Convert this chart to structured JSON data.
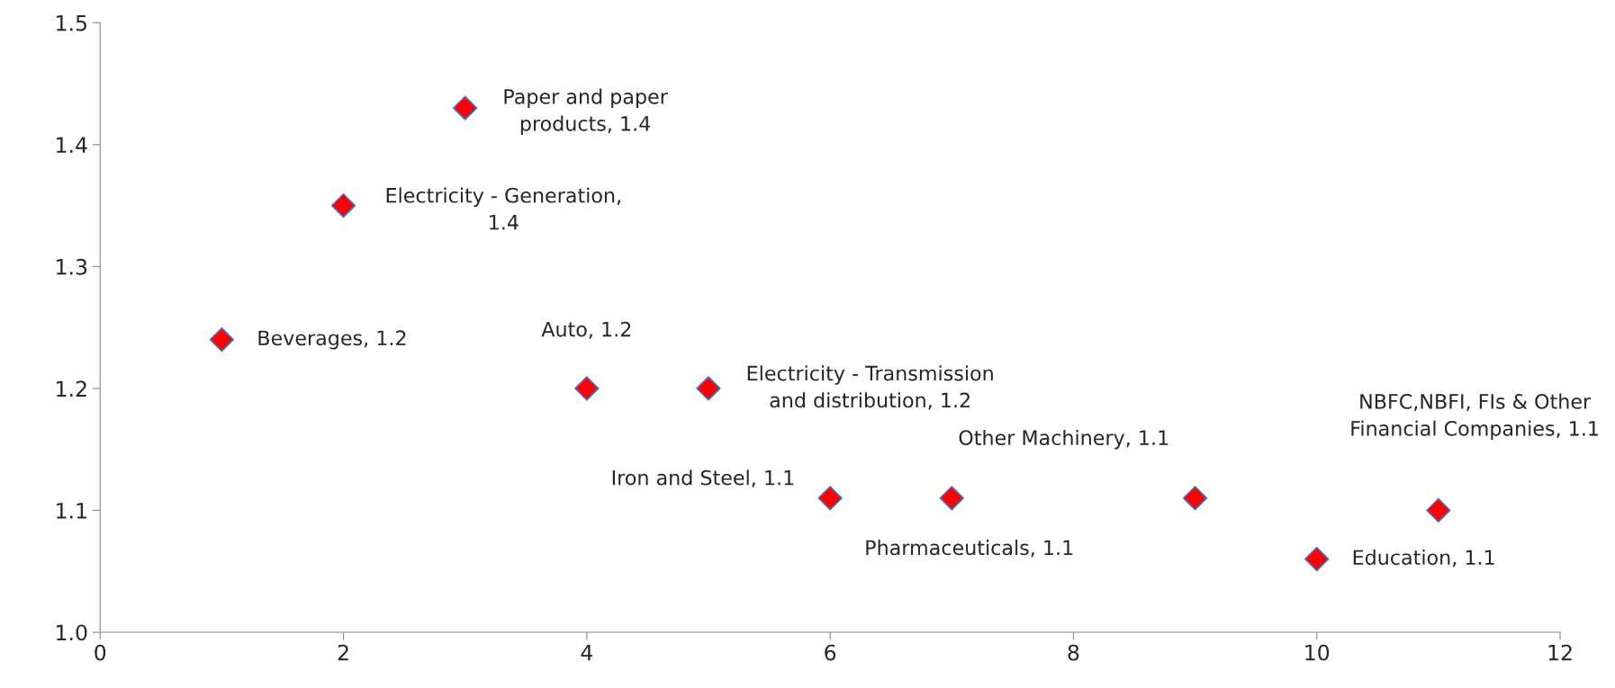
{
  "chart_data": {
    "type": "scatter",
    "x": [
      1,
      2,
      3,
      4,
      5,
      6,
      7,
      9,
      10,
      11
    ],
    "series": [
      {
        "color": "#ff0000",
        "values": [
          1.24,
          1.35,
          1.43,
          1.2,
          1.2,
          1.11,
          1.11,
          1.11,
          1.06,
          1.1
        ],
        "value_labels": [
          "Beverages, 1.2",
          "Electricity - Generation,\n1.4",
          "Paper and paper\nproducts, 1.4",
          "Auto, 1.2",
          "Electricity - Transmission\nand distribution, 1.2",
          "Iron and Steel, 1.1",
          "Pharmaceuticals, 1.1",
          "Other Machinery, 1.1",
          "Education, 1.1",
          "NBFC,NBFI, FIs & Other\nFinancial Companies, 1.1"
        ]
      }
    ],
    "xlim": [
      0,
      12
    ],
    "xticks": [
      0,
      2,
      4,
      6,
      8,
      10,
      12
    ],
    "ylim": [
      1.0,
      1.5
    ],
    "yticks": [
      {
        "value": 1.0,
        "label": "1.0"
      },
      {
        "value": 1.1,
        "label": "1.1"
      },
      {
        "value": 1.2,
        "label": "1.2"
      },
      {
        "value": 1.3,
        "label": "1.3"
      },
      {
        "value": 1.4,
        "label": "1.4"
      },
      {
        "value": 1.5,
        "label": "1.5"
      }
    ],
    "marker": "diamond"
  }
}
